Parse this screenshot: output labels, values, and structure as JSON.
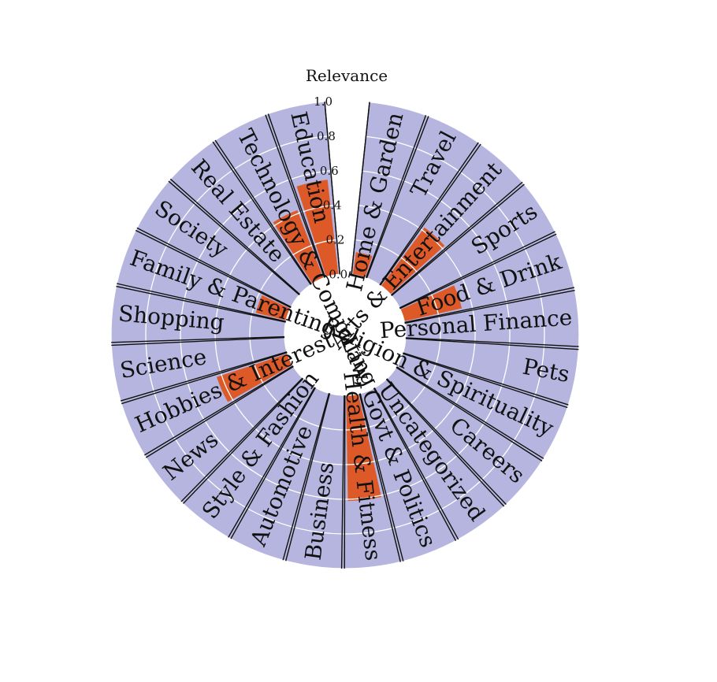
{
  "chart_data": {
    "type": "bar",
    "subtype": "polar-bar",
    "title": "",
    "radial_axis_label": "Relevance",
    "rlim": [
      0,
      1.0
    ],
    "r_ticks": [
      "0.0",
      "0.2",
      "0.4",
      "0.6",
      "0.8",
      "1.0"
    ],
    "grid": true,
    "colors": {
      "background": "#b5b5df",
      "bar": "#dd5a28",
      "grid": "#ffffff",
      "divider": "#111111"
    },
    "categories": [
      "Home & Garden",
      "Travel",
      "Arts & Entertainment",
      "Sports",
      "Food & Drink",
      "Personal Finance",
      "Pets",
      "Religion & Spirituality",
      "Careers",
      "Uncategorized",
      "Law, Govt & Politics",
      "Health & Fitness",
      "Business",
      "Automotive",
      "Style & Fashion",
      "News",
      "Hobbies & Interest",
      "Science",
      "Shopping",
      "Family & Parenting",
      "Society",
      "Real Estate",
      "Technology & Computing",
      "Education"
    ],
    "values": [
      0.13,
      0.0,
      0.42,
      0.0,
      0.34,
      0.0,
      0.0,
      0.0,
      0.0,
      0.0,
      0.0,
      0.61,
      0.0,
      0.0,
      0.0,
      0.0,
      0.43,
      0.0,
      0.0,
      0.18,
      0.0,
      0.0,
      0.42,
      0.55
    ]
  }
}
